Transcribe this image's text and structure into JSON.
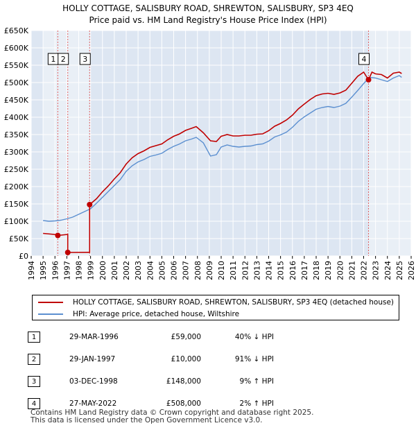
{
  "title": {
    "line1": "HOLLY COTTAGE, SALISBURY ROAD, SHREWTON, SALISBURY, SP3 4EQ",
    "line2": "Price paid vs. HM Land Registry's House Price Index (HPI)"
  },
  "colors": {
    "price": "#c00000",
    "hpi": "#5b8fd0",
    "bg": "#dde6f2",
    "grid": "#ffffff"
  },
  "chart_data": {
    "type": "line",
    "title": "Price paid vs. HM Land Registry's House Price Index (HPI)",
    "xlabel": "",
    "ylabel": "",
    "xlim": [
      1994,
      2026
    ],
    "ylim": [
      0,
      650000
    ],
    "x_ticks": [
      "1994",
      "1995",
      "1996",
      "1997",
      "1998",
      "1999",
      "2000",
      "2001",
      "2002",
      "2003",
      "2004",
      "2005",
      "2006",
      "2007",
      "2008",
      "2009",
      "2010",
      "2011",
      "2012",
      "2013",
      "2014",
      "2015",
      "2016",
      "2017",
      "2018",
      "2019",
      "2020",
      "2021",
      "2022",
      "2023",
      "2024",
      "2025",
      "2026"
    ],
    "y_ticks": [
      {
        "v": 0,
        "label": "£0"
      },
      {
        "v": 50000,
        "label": "£50K"
      },
      {
        "v": 100000,
        "label": "£100K"
      },
      {
        "v": 150000,
        "label": "£150K"
      },
      {
        "v": 200000,
        "label": "£200K"
      },
      {
        "v": 250000,
        "label": "£250K"
      },
      {
        "v": 300000,
        "label": "£300K"
      },
      {
        "v": 350000,
        "label": "£350K"
      },
      {
        "v": 400000,
        "label": "£400K"
      },
      {
        "v": 450000,
        "label": "£450K"
      },
      {
        "v": 500000,
        "label": "£500K"
      },
      {
        "v": 550000,
        "label": "£550K"
      },
      {
        "v": 600000,
        "label": "£600K"
      },
      {
        "v": 650000,
        "label": "£650K"
      }
    ],
    "series": [
      {
        "name": "HOLLY COTTAGE, SALISBURY ROAD, SHREWTON, SALISBURY, SP3 4EQ (detached house)",
        "key": "price",
        "x": [
          1995.0,
          1996.24,
          1996.24,
          1997.08,
          1997.08,
          1998.92,
          1998.92,
          1999.5,
          2000,
          2000.5,
          2001,
          2001.5,
          2002,
          2002.5,
          2003,
          2003.5,
          2004,
          2004.5,
          2005,
          2005.5,
          2006,
          2006.5,
          2007,
          2007.5,
          2007.9,
          2008.5,
          2009.1,
          2009.6,
          2010,
          2010.5,
          2011,
          2011.5,
          2012,
          2012.5,
          2013,
          2013.5,
          2014,
          2014.5,
          2015,
          2015.5,
          2016,
          2016.5,
          2017,
          2017.5,
          2018,
          2018.5,
          2019,
          2019.5,
          2020,
          2020.5,
          2021,
          2021.5,
          2022,
          2022.41,
          2022.7,
          2023,
          2023.5,
          2024,
          2024.5,
          2025,
          2025.2
        ],
        "y": [
          65000,
          61000,
          59000,
          62000,
          10000,
          10500,
          148000,
          165000,
          185000,
          202000,
          222000,
          240000,
          265000,
          283000,
          295000,
          303000,
          313000,
          318000,
          323000,
          335000,
          345000,
          352000,
          362000,
          368000,
          373000,
          355000,
          332000,
          330000,
          345000,
          350000,
          346000,
          346000,
          348000,
          348000,
          351000,
          352000,
          361000,
          374000,
          382000,
          392000,
          406000,
          424000,
          438000,
          451000,
          462000,
          467000,
          469000,
          466000,
          470000,
          478000,
          498000,
          518000,
          530000,
          508000,
          530000,
          525000,
          523000,
          513000,
          527000,
          530000,
          526000
        ]
      },
      {
        "name": "HPI: Average price, detached house, Wiltshire",
        "key": "hpi",
        "x": [
          1995.0,
          1995.5,
          1996,
          1996.5,
          1997,
          1997.5,
          1998,
          1998.5,
          1999,
          1999.5,
          2000,
          2000.5,
          2001,
          2001.5,
          2002,
          2002.5,
          2003,
          2003.5,
          2004,
          2004.5,
          2005,
          2005.5,
          2006,
          2006.5,
          2007,
          2007.5,
          2007.9,
          2008.5,
          2009.1,
          2009.6,
          2010,
          2010.5,
          2011,
          2011.5,
          2012,
          2012.5,
          2013,
          2013.5,
          2014,
          2014.5,
          2015,
          2015.5,
          2016,
          2016.5,
          2017,
          2017.5,
          2018,
          2018.5,
          2019,
          2019.5,
          2020,
          2020.5,
          2021,
          2021.5,
          2022,
          2022.5,
          2023,
          2023.5,
          2024,
          2024.5,
          2025,
          2025.2
        ],
        "y": [
          102000,
          100000,
          101000,
          103000,
          107000,
          112000,
          120000,
          128000,
          136000,
          152000,
          169000,
          186000,
          203000,
          220000,
          244000,
          260000,
          271000,
          278000,
          287000,
          291000,
          296000,
          307000,
          316000,
          323000,
          332000,
          337000,
          342000,
          326000,
          288000,
          292000,
          314000,
          320000,
          316000,
          314000,
          316000,
          317000,
          321000,
          323000,
          331000,
          343000,
          349000,
          357000,
          371000,
          388000,
          401000,
          412000,
          423000,
          428000,
          431000,
          428000,
          432000,
          440000,
          458000,
          477000,
          497000,
          515000,
          513000,
          508000,
          503000,
          513000,
          520000,
          515000
        ]
      }
    ],
    "sales": [
      {
        "num": "1",
        "x": 1996.24,
        "y": 59000,
        "date": "29-MAR-1996",
        "price": "£59,000",
        "hpi": "40% ↓ HPI"
      },
      {
        "num": "2",
        "x": 1997.08,
        "y": 10000,
        "date": "29-JAN-1997",
        "price": "£10,000",
        "hpi": "91% ↓ HPI"
      },
      {
        "num": "3",
        "x": 1998.92,
        "y": 148000,
        "date": "03-DEC-1998",
        "price": "£148,000",
        "hpi": "9% ↑ HPI"
      },
      {
        "num": "4",
        "x": 2022.41,
        "y": 508000,
        "date": "27-MAY-2022",
        "price": "£508,000",
        "hpi": "2% ↑ HPI"
      }
    ]
  },
  "legend": {
    "price_label": "HOLLY COTTAGE, SALISBURY ROAD, SHREWTON, SALISBURY, SP3 4EQ (detached house)",
    "hpi_label": "HPI: Average price, detached house, Wiltshire"
  },
  "transactions": [
    {
      "num": "1",
      "date": "29-MAR-1996",
      "price": "£59,000",
      "hpi": "40% ↓ HPI"
    },
    {
      "num": "2",
      "date": "29-JAN-1997",
      "price": "£10,000",
      "hpi": "91% ↓ HPI"
    },
    {
      "num": "3",
      "date": "03-DEC-1998",
      "price": "£148,000",
      "hpi": "9% ↑ HPI"
    },
    {
      "num": "4",
      "date": "27-MAY-2022",
      "price": "£508,000",
      "hpi": "2% ↑ HPI"
    }
  ],
  "footer": {
    "line1": "Contains HM Land Registry data © Crown copyright and database right 2025.",
    "line2": "This data is licensed under the Open Government Licence v3.0."
  }
}
